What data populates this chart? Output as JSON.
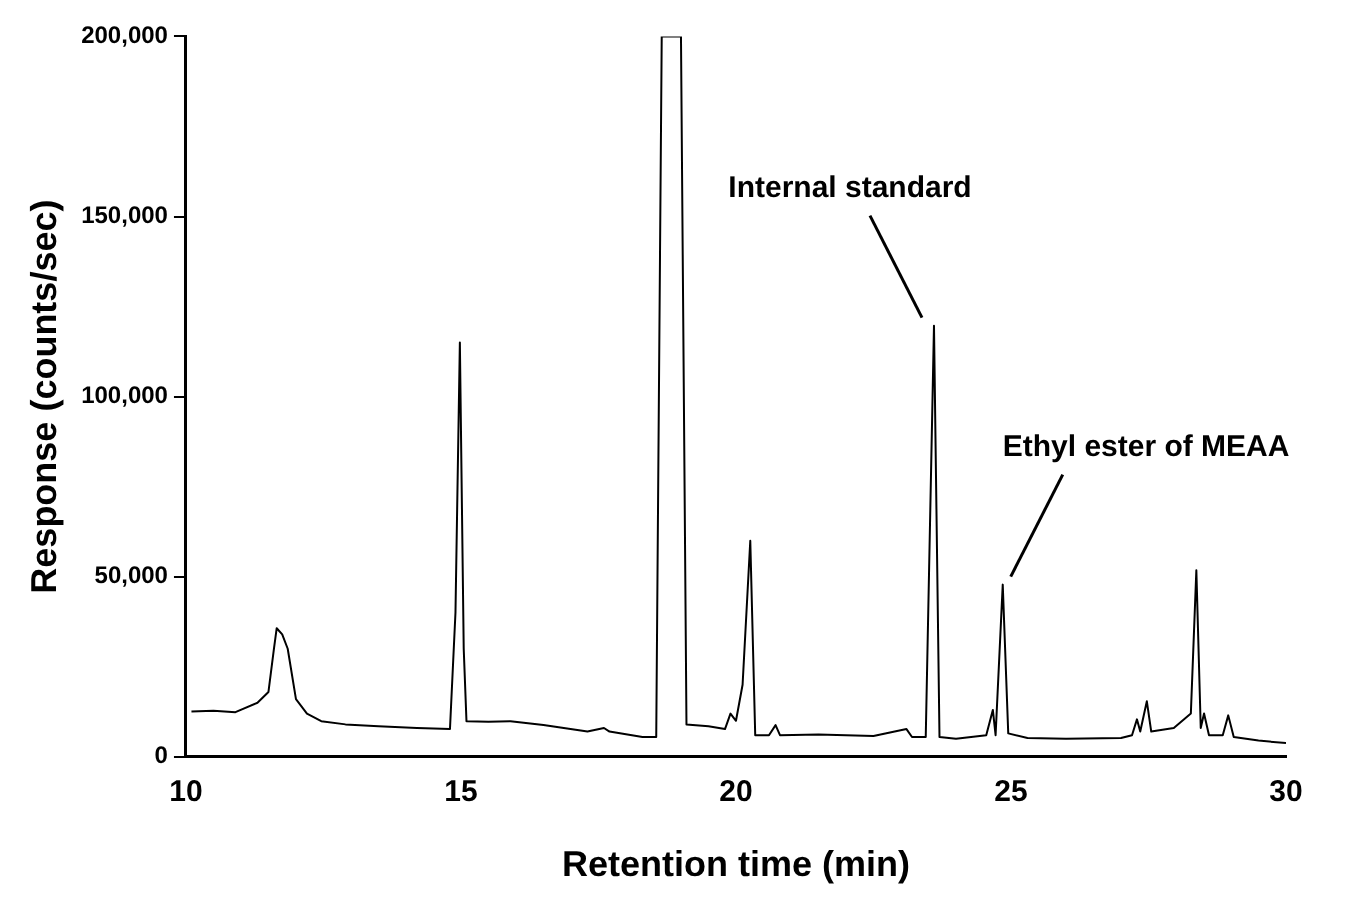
{
  "chart_data": {
    "type": "line",
    "xlabel": "Retention time (min)",
    "ylabel": "Response (counts/sec)",
    "series": [
      {
        "color": "#000000",
        "x": [
          10.1,
          10.5,
          10.9,
          11.3,
          11.5,
          11.6,
          11.65,
          11.75,
          11.85,
          12.0,
          12.2,
          12.46,
          12.9,
          13.5,
          14.2,
          14.8,
          14.9,
          14.98,
          15.05,
          15.1,
          15.5,
          15.9,
          16.5,
          17.3,
          17.6,
          17.7,
          18.3,
          18.55,
          18.65,
          19.0,
          19.1,
          19.5,
          19.8,
          19.9,
          20.0,
          20.12,
          20.26,
          20.35,
          20.6,
          20.72,
          20.8,
          21.5,
          22.5,
          23.1,
          23.2,
          23.45,
          23.6,
          23.7,
          24.0,
          24.55,
          24.67,
          24.72,
          24.85,
          24.95,
          25.3,
          26.0,
          27.0,
          27.2,
          27.29,
          27.35,
          27.47,
          27.55,
          27.96,
          28.27,
          28.37,
          28.45,
          28.51,
          28.6,
          28.85,
          28.95,
          29.05,
          29.5,
          30.0
        ],
        "values": [
          12600,
          12800,
          12400,
          15000,
          18000,
          30000,
          35700,
          34000,
          30000,
          16000,
          12000,
          9900,
          9000,
          8500,
          8000,
          7700,
          40000,
          115000,
          30000,
          9900,
          9700,
          9900,
          8800,
          7000,
          8000,
          7000,
          5500,
          5500,
          200000,
          200000,
          9000,
          8500,
          7700,
          12000,
          10000,
          20000,
          60000,
          6000,
          6000,
          8800,
          6000,
          6200,
          5800,
          7700,
          5500,
          5500,
          119700,
          5500,
          5000,
          6000,
          13000,
          6000,
          47800,
          6500,
          5200,
          5000,
          5200,
          6000,
          10400,
          7000,
          15400,
          7000,
          8000,
          12000,
          51800,
          8000,
          12000,
          6000,
          6000,
          11500,
          5500,
          4500,
          3800
        ]
      }
    ],
    "xlim": [
      10,
      30
    ],
    "xticks": [
      10,
      15,
      20,
      25,
      30
    ],
    "ylim": [
      0,
      200000
    ],
    "yticks": [
      {
        "value": 0,
        "label": "0"
      },
      {
        "value": 50000,
        "label": "50,000"
      },
      {
        "value": 100000,
        "label": "100,000"
      },
      {
        "value": 150000,
        "label": "150,000"
      },
      {
        "value": 200000,
        "label": "200,000"
      }
    ],
    "annotations": [
      {
        "text": "Internal standard",
        "x": 23.6,
        "y": 119700
      },
      {
        "text": "Ethyl ester of MEAA",
        "x": 24.85,
        "y": 47800
      }
    ],
    "grid": false,
    "legend": false,
    "marker": "none",
    "line_style": "solid"
  }
}
